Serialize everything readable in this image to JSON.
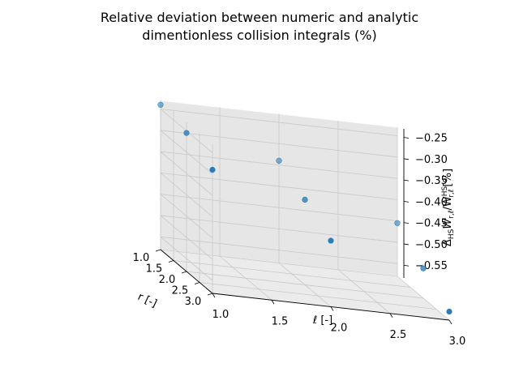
{
  "chart_data": {
    "type": "scatter",
    "title_line1": "Relative deviation between numeric and analytic",
    "title_line2": "dimentionless collision integrals (%)",
    "xlabel": "ℓ [-]",
    "ylabel": "r [-]",
    "zlabel": "Δ_HS W_{r,ℓ}/W^{HS}_{r,ℓ} [%]",
    "zlabel_prefix": "Δ",
    "zlabel_sub1": "HS",
    "zlabel_main": "W",
    "zlabel_sub2": "r,ℓ",
    "zlabel_slash": "/W",
    "zlabel_sup": "HS",
    "zlabel_sub3": "r,ℓ",
    "zlabel_unit": "[%]",
    "x_ticks": [
      "1.0",
      "1.5",
      "2.0",
      "2.5",
      "3.0"
    ],
    "y_ticks": [
      "1.0",
      "1.5",
      "2.0",
      "2.5",
      "3.0"
    ],
    "z_ticks": [
      "−0.25",
      "−0.30",
      "−0.35",
      "−0.40",
      "−0.45",
      "−0.50",
      "−0.55"
    ],
    "xlim": [
      1.0,
      3.0
    ],
    "ylim": [
      1.0,
      3.0
    ],
    "zlim": [
      -0.58,
      -0.23
    ],
    "grid": true,
    "points": [
      {
        "l": 1,
        "r": 1,
        "z": -0.24
      },
      {
        "l": 1,
        "r": 2,
        "z": -0.255
      },
      {
        "l": 1,
        "r": 3,
        "z": -0.29
      },
      {
        "l": 2,
        "r": 1,
        "z": -0.34
      },
      {
        "l": 2,
        "r": 2,
        "z": -0.38
      },
      {
        "l": 2,
        "r": 3,
        "z": -0.425
      },
      {
        "l": 3,
        "r": 1,
        "z": -0.455
      },
      {
        "l": 3,
        "r": 2,
        "z": -0.51
      },
      {
        "l": 3,
        "r": 3,
        "z": -0.56
      }
    ],
    "point_color": "#1f77b4"
  }
}
